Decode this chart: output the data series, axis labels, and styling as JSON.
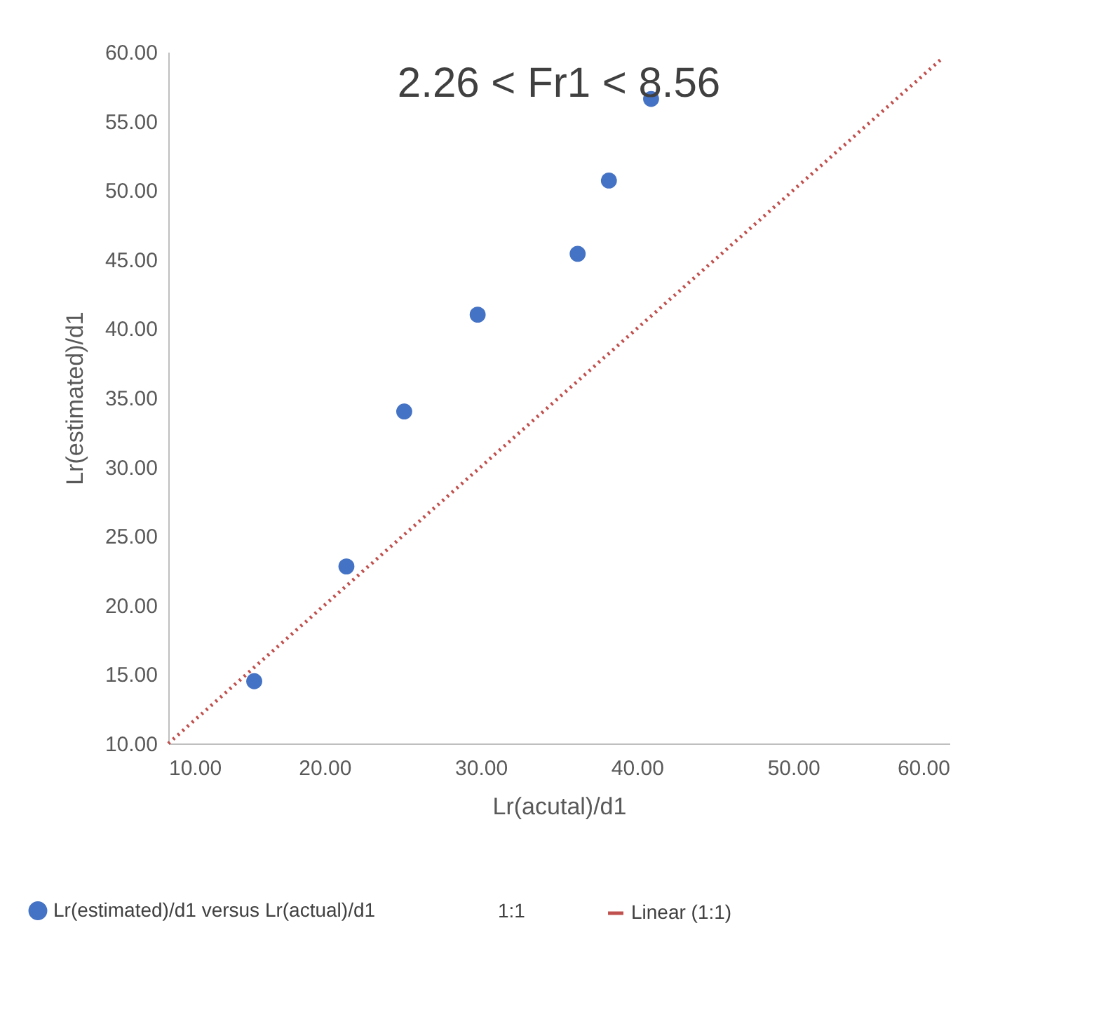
{
  "chart_data": {
    "type": "scatter",
    "title": "2.26 < Fr1 < 8.56",
    "xlabel": "Lr(acutal)/d1",
    "ylabel": "Lr(estimated)/d1",
    "legend": "bottom",
    "marker": "circle",
    "xlim": [
      10,
      60
    ],
    "ylim": [
      10,
      60
    ],
    "xticks": [
      {
        "value": 10,
        "label": "10.00"
      },
      {
        "value": 20,
        "label": "20.00"
      },
      {
        "value": 30,
        "label": "30.00"
      },
      {
        "value": 40,
        "label": "40.00"
      },
      {
        "value": 50,
        "label": "50.00"
      },
      {
        "value": 60,
        "label": "60.00"
      }
    ],
    "yticks": [
      {
        "value": 10,
        "label": "10.00"
      },
      {
        "value": 15,
        "label": "15.00"
      },
      {
        "value": 20,
        "label": "20.00"
      },
      {
        "value": 25,
        "label": "25.00"
      },
      {
        "value": 30,
        "label": "30.00"
      },
      {
        "value": 35,
        "label": "35.00"
      },
      {
        "value": 40,
        "label": "40.00"
      },
      {
        "value": 45,
        "label": "45.00"
      },
      {
        "value": 50,
        "label": "50.00"
      },
      {
        "value": 55,
        "label": "55.00"
      },
      {
        "value": 60,
        "label": "60.00"
      }
    ],
    "annotations": [
      "1:1"
    ],
    "series": [
      {
        "name": "Lr(estimated)/d1 versus Lr(actual)/d1",
        "type": "scatter",
        "color": "#4472c4",
        "x": [
          15.5,
          21.4,
          25.1,
          29.8,
          36.2,
          38.2,
          40.9
        ],
        "values": [
          14.5,
          22.8,
          34.0,
          41.0,
          45.4,
          50.7,
          56.6
        ]
      },
      {
        "name": "Linear (1:1)",
        "type": "line",
        "line_style": "dotted",
        "marker": "none",
        "color": "#c0504d",
        "x": [
          10,
          59.5
        ],
        "values": [
          10,
          59.5
        ]
      }
    ]
  }
}
